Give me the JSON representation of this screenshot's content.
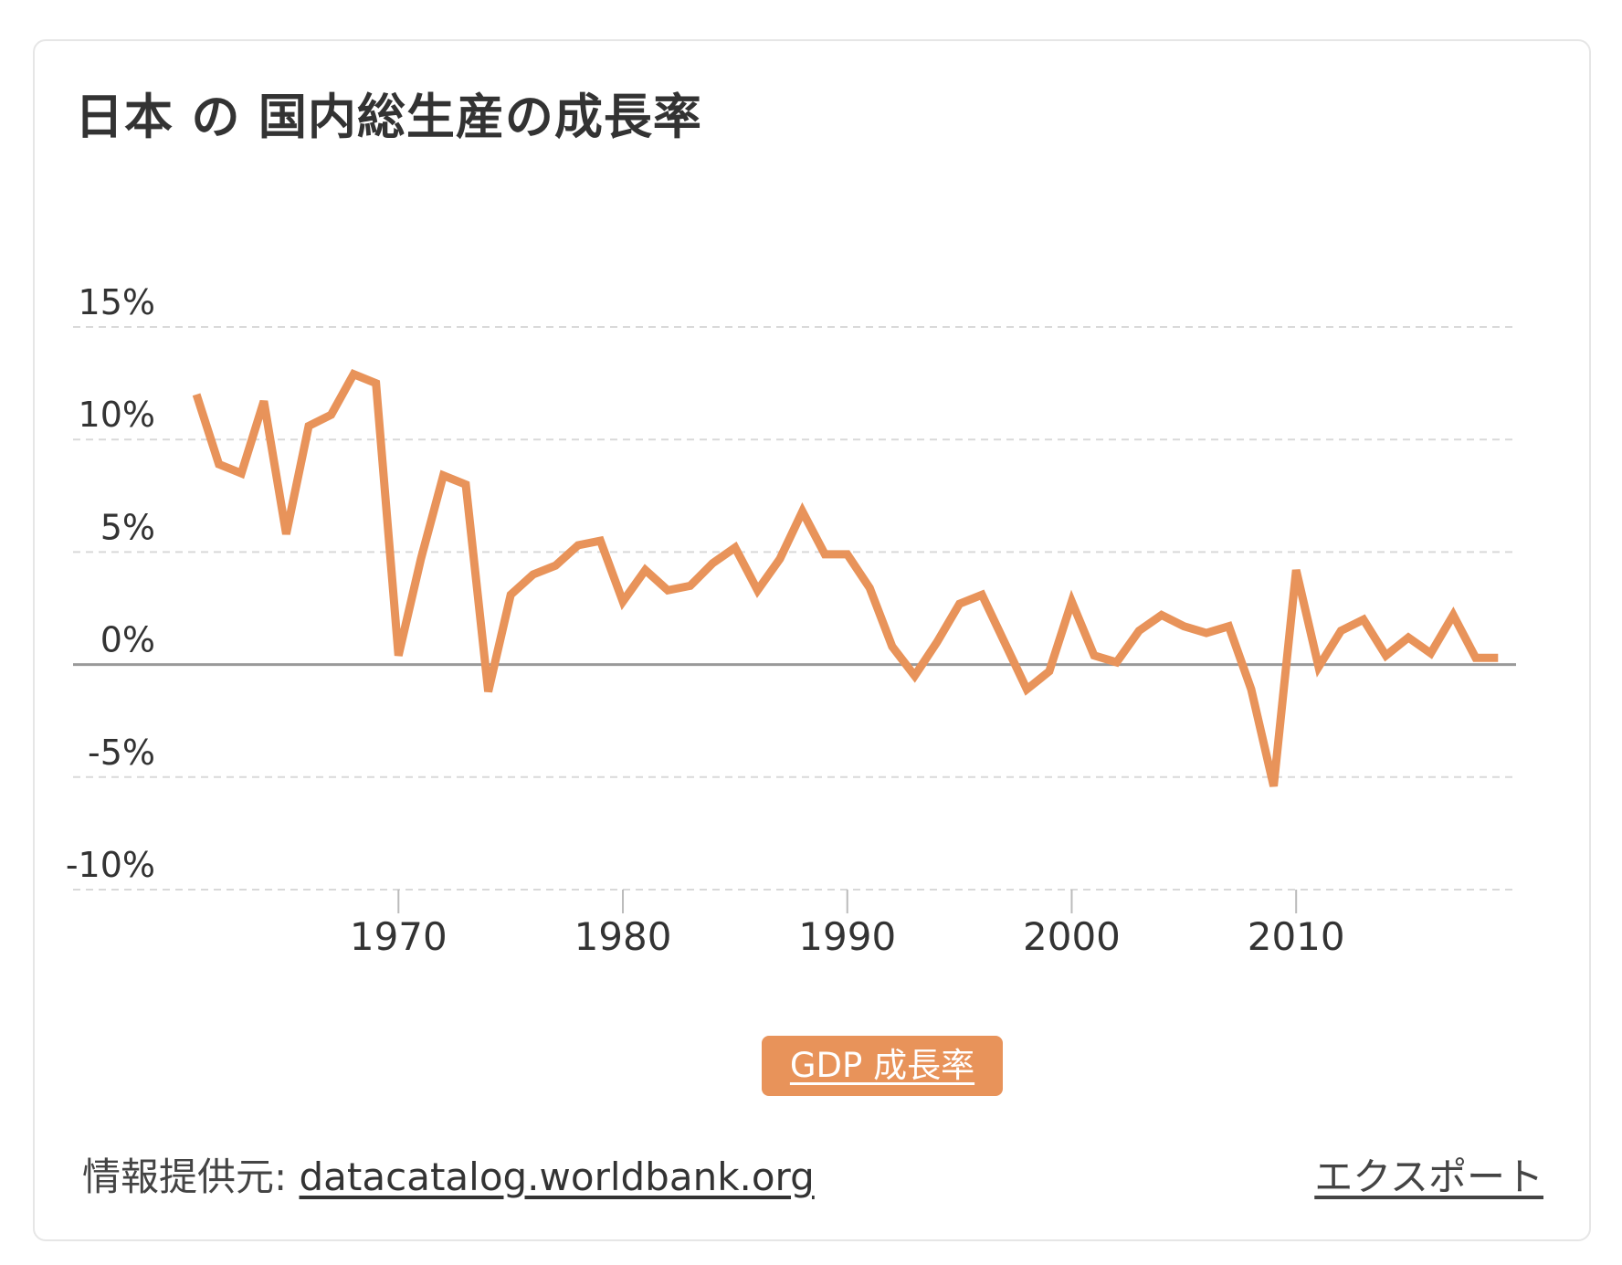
{
  "title": "日本 の 国内総生産の成長率",
  "legend": {
    "label": "GDP 成長率",
    "color": "#E8935A"
  },
  "footer": {
    "source_label": "情報提供元: ",
    "source_link": "datacatalog.worldbank.org",
    "export_label": "エクスポート"
  },
  "chart_data": {
    "type": "line",
    "title": "日本 の 国内総生産の成長率",
    "xlabel": "",
    "ylabel": "",
    "x_ticks": [
      1970,
      1980,
      1990,
      2000,
      2010
    ],
    "y_ticks": [
      15,
      10,
      5,
      0,
      -5,
      -10
    ],
    "y_tick_labels": [
      "15%",
      "10%",
      "5%",
      "0%",
      "-5%",
      "-10%"
    ],
    "ylim": [
      -10,
      15
    ],
    "xlim": [
      1955.5,
      2019.8
    ],
    "grid": true,
    "legend_position": "bottom-center",
    "series": [
      {
        "name": "GDP 成長率",
        "color": "#E8935A",
        "x": [
          1961,
          1962,
          1963,
          1964,
          1965,
          1966,
          1967,
          1968,
          1969,
          1970,
          1971,
          1972,
          1973,
          1974,
          1975,
          1976,
          1977,
          1978,
          1979,
          1980,
          1981,
          1982,
          1983,
          1984,
          1985,
          1986,
          1987,
          1988,
          1989,
          1990,
          1991,
          1992,
          1993,
          1994,
          1995,
          1996,
          1997,
          1998,
          1999,
          2000,
          2001,
          2002,
          2003,
          2004,
          2005,
          2006,
          2007,
          2008,
          2009,
          2010,
          2011,
          2012,
          2013,
          2014,
          2015,
          2016,
          2017,
          2018,
          2019
        ],
        "values": [
          12.0,
          8.9,
          8.5,
          11.7,
          5.8,
          10.6,
          11.1,
          12.9,
          12.5,
          0.4,
          4.7,
          8.4,
          8.0,
          -1.2,
          3.1,
          4.0,
          4.4,
          5.3,
          5.5,
          2.8,
          4.2,
          3.3,
          3.5,
          4.5,
          5.2,
          3.3,
          4.7,
          6.8,
          4.9,
          4.9,
          3.4,
          0.8,
          -0.5,
          1.0,
          2.7,
          3.1,
          1.0,
          -1.1,
          -0.3,
          2.8,
          0.4,
          0.1,
          1.5,
          2.2,
          1.7,
          1.4,
          1.7,
          -1.1,
          -5.4,
          4.2,
          -0.1,
          1.5,
          2.0,
          0.4,
          1.2,
          0.5,
          2.2,
          0.3,
          0.3
        ]
      }
    ]
  }
}
